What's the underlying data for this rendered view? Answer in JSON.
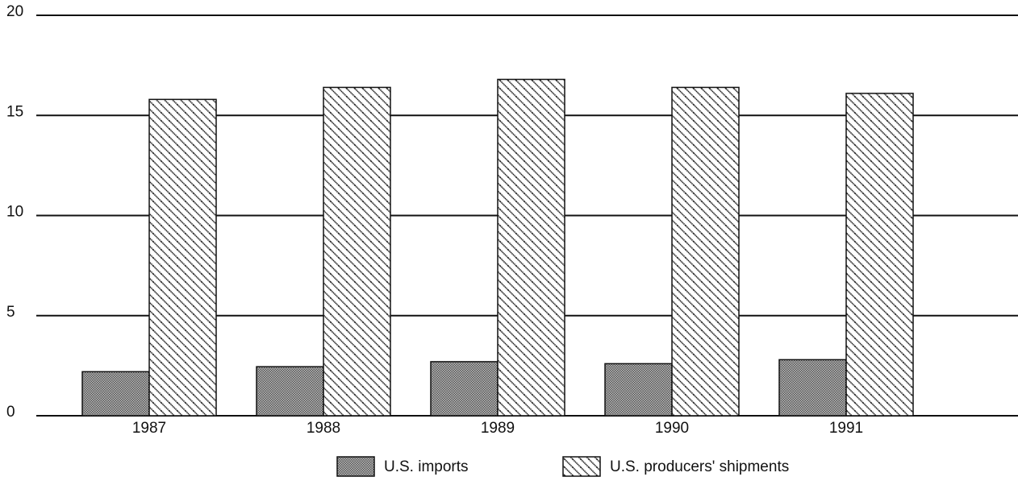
{
  "chart_data": {
    "type": "bar",
    "categories": [
      "1987",
      "1988",
      "1989",
      "1990",
      "1991"
    ],
    "series": [
      {
        "name": "U.S. imports",
        "color": "#555555",
        "values": [
          2.2,
          2.45,
          2.7,
          2.6,
          2.8
        ]
      },
      {
        "name": "U.S. producers' shipments",
        "color": "#222222",
        "values": [
          15.8,
          16.4,
          16.8,
          16.4,
          16.1
        ]
      }
    ],
    "ylim": [
      0,
      20
    ],
    "yticks": [
      0,
      5,
      10,
      15,
      20
    ],
    "grid": true
  }
}
